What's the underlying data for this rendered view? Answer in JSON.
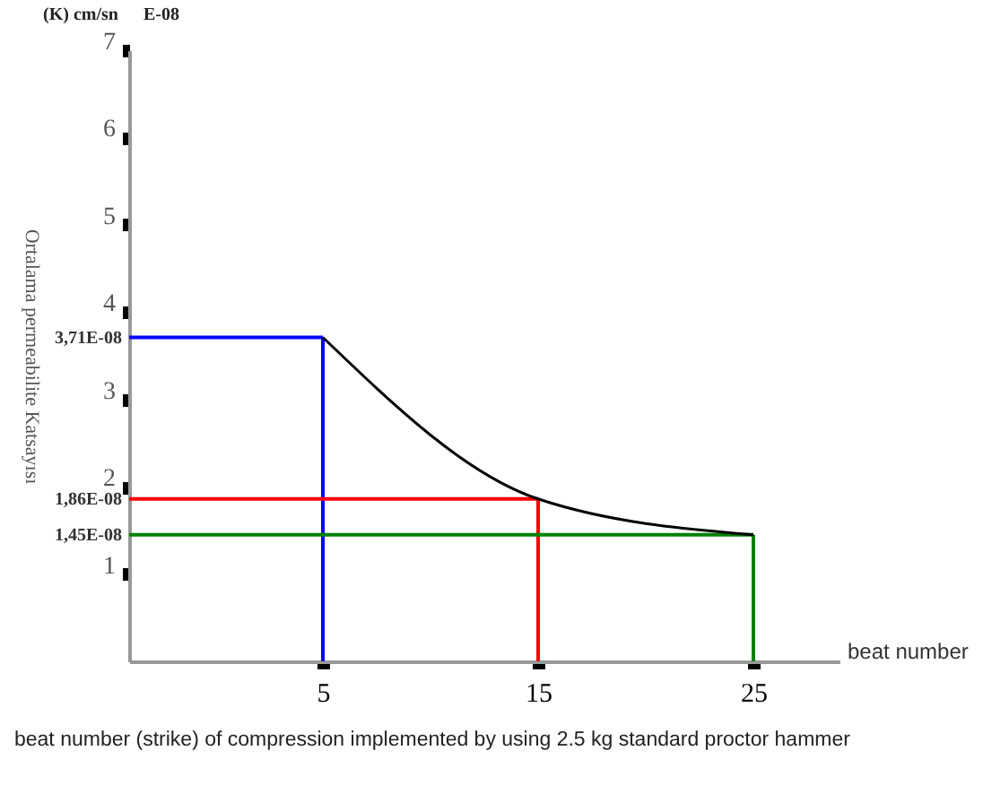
{
  "chart_data": {
    "type": "line",
    "xlabel": "beat number",
    "ylabel": "Ortalama permeabilite Katsayısı",
    "x": [
      5,
      15,
      25
    ],
    "series": [
      {
        "color": "#000000",
        "values": [
          3.71,
          1.86,
          1.45
        ]
      }
    ],
    "xlim": [
      -4,
      29
    ],
    "xticks": [
      5,
      15,
      25
    ],
    "ylim": [
      0,
      7
    ],
    "yticks": [
      1,
      2,
      3,
      4,
      5,
      6,
      7
    ],
    "grid": false,
    "ref_lines": [
      {
        "axis": "y",
        "value": 3.71,
        "label": "3,71E-08",
        "color": "#0000ff"
      },
      {
        "axis": "y",
        "value": 1.86,
        "label": "1,86E-08",
        "color": "#ff0000"
      },
      {
        "axis": "y",
        "value": 1.45,
        "label": "1,45E-08",
        "color": "#008000"
      },
      {
        "axis": "x",
        "value": 5,
        "color": "#0000ff"
      },
      {
        "axis": "x",
        "value": 15,
        "color": "#ff0000"
      },
      {
        "axis": "x",
        "value": 25,
        "color": "#008000"
      }
    ],
    "annotations": [
      "(K) cm/sn",
      "E-08",
      "beat number (strike) of compression implemented by using 2.5 kg standard proctor hammer"
    ]
  }
}
